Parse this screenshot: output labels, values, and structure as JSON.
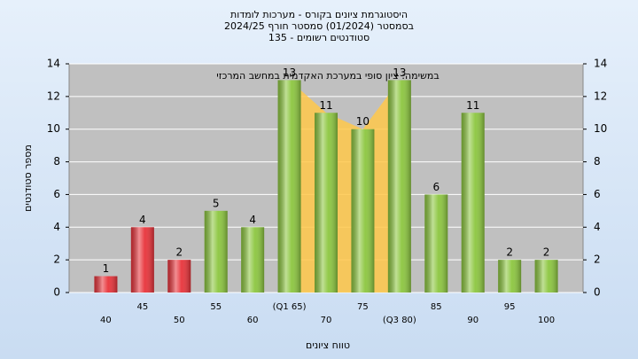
{
  "chart_data": {
    "type": "bar",
    "title": "היסטוגרמת ציונים בקורס - מערכות לומדות",
    "subtitle": "בסמסטר  (01/2024)  סמסטר חורף 2024/25",
    "subtitle2": "סטודנטים רשומים - 135",
    "annotation": "במשימה: ציון סופי במערכת האקדמית במחשב המרכזי",
    "x_label": "טווח ציונים",
    "y_label": "מספר סטודנטים",
    "categories": [
      "40",
      "45",
      "50",
      "55",
      "60",
      "(Q1 65)",
      "70",
      "75",
      "(Q3 80)",
      "85",
      "90",
      "95",
      "100"
    ],
    "values": [
      1,
      4,
      2,
      5,
      4,
      13,
      11,
      10,
      13,
      6,
      11,
      2,
      2
    ],
    "colors": [
      "#e8333a",
      "#e8333a",
      "#e8333a",
      "#8cc63f",
      "#8cc63f",
      "#8cc63f",
      "#8cc63f",
      "#8cc63f",
      "#8cc63f",
      "#8cc63f",
      "#8cc63f",
      "#8cc63f",
      "#8cc63f"
    ],
    "iqr_color": "#ffc84a",
    "ylim": [
      0,
      14
    ],
    "yticks": [
      0,
      2,
      4,
      6,
      8,
      10,
      12,
      14
    ],
    "grid": true
  }
}
